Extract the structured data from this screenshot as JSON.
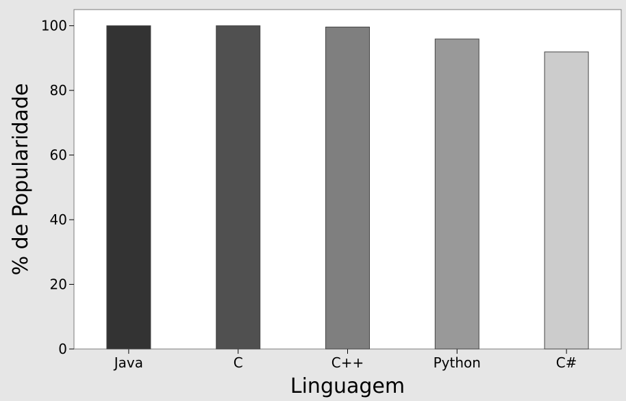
{
  "chart_data": {
    "type": "bar",
    "title": "",
    "xlabel": "Linguagem",
    "ylabel": "% de Popularidade",
    "categories": [
      "Java",
      "C",
      "C++",
      "Python",
      "C#"
    ],
    "values": [
      100,
      100,
      99.6,
      95.9,
      91.9
    ],
    "ylim": [
      0,
      105
    ],
    "yticks": [
      0,
      20,
      40,
      60,
      80,
      100
    ],
    "bar_colors": [
      "#333333",
      "#505050",
      "#7f7f7f",
      "#999999",
      "#cccccc"
    ],
    "background_color": "#e6e6e6",
    "plot_background_color": "#ffffff",
    "grid": false,
    "legend": "none"
  }
}
